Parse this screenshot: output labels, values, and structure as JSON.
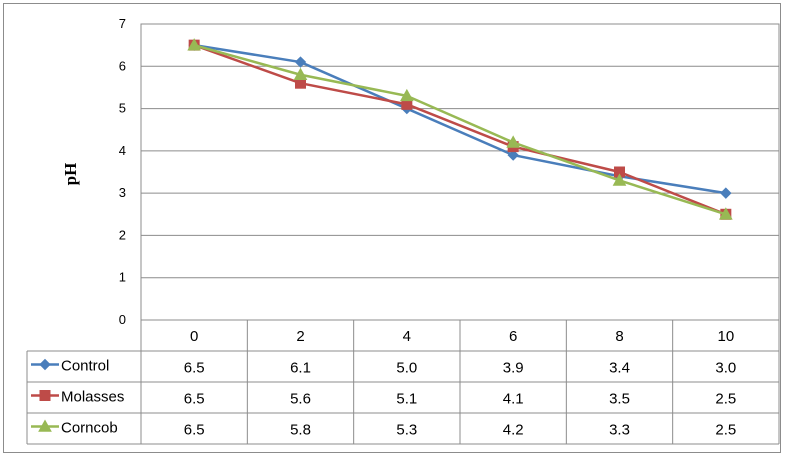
{
  "chart_data": {
    "type": "line",
    "title": "",
    "xlabel": "",
    "ylabel": "pH",
    "ylim": [
      0,
      7
    ],
    "yticks": [
      "0",
      "1",
      "2",
      "3",
      "4",
      "5",
      "6",
      "7"
    ],
    "categories": [
      "0",
      "2",
      "4",
      "6",
      "8",
      "10"
    ],
    "grid": true,
    "legend": "data-table",
    "series": [
      {
        "name": "Control",
        "color": "#4a7ebb",
        "marker": "diamond",
        "values": [
          6.5,
          6.1,
          5.0,
          3.9,
          3.4,
          3.0
        ],
        "labels": [
          "6.5",
          "6.1",
          "5.0",
          "3.9",
          "3.4",
          "3.0"
        ]
      },
      {
        "name": "Molasses",
        "color": "#be4b48",
        "marker": "square",
        "values": [
          6.5,
          5.6,
          5.1,
          4.1,
          3.5,
          2.5
        ],
        "labels": [
          "6.5",
          "5.6",
          "5.1",
          "4.1",
          "3.5",
          "2.5"
        ]
      },
      {
        "name": "Corncob",
        "color": "#98b954",
        "marker": "triangle",
        "values": [
          6.5,
          5.8,
          5.3,
          4.2,
          3.3,
          2.5
        ],
        "labels": [
          "6.5",
          "5.8",
          "5.3",
          "4.2",
          "3.3",
          "2.5"
        ]
      }
    ]
  }
}
